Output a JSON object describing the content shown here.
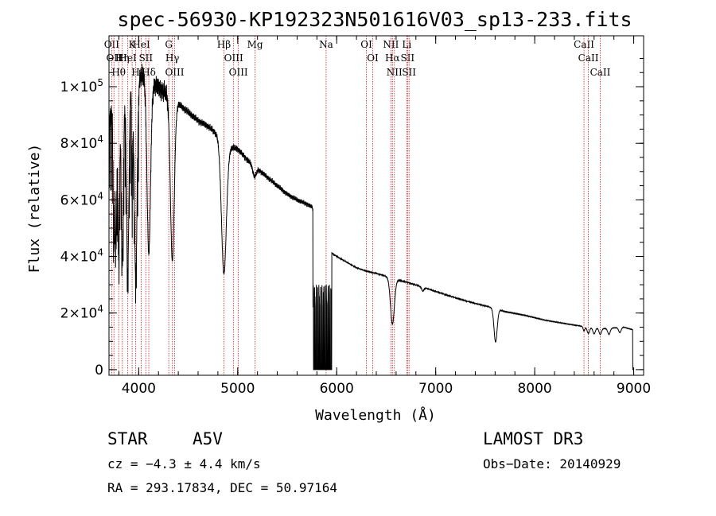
{
  "chart_data": {
    "type": "line",
    "title": "spec-56930-KP192323N501616V03_sp13-233.fits",
    "xlabel": "Wavelength (Å)",
    "ylabel": "Flux (relative)",
    "xlim": [
      3700,
      9100
    ],
    "ylim": [
      -2000,
      118000
    ],
    "x_ticks": [
      4000,
      5000,
      6000,
      7000,
      8000,
      9000
    ],
    "y_ticks": [
      {
        "value": 0,
        "mantissa": "0",
        "exp": ""
      },
      {
        "value": 20000,
        "mantissa": "2×10",
        "exp": "4"
      },
      {
        "value": 40000,
        "mantissa": "4×10",
        "exp": "4"
      },
      {
        "value": 60000,
        "mantissa": "6×10",
        "exp": "4"
      },
      {
        "value": 80000,
        "mantissa": "8×10",
        "exp": "4"
      },
      {
        "value": 100000,
        "mantissa": "1×10",
        "exp": "5"
      }
    ],
    "spectral_lines": [
      {
        "wl": 3727,
        "label": "OII"
      },
      {
        "wl": 3750,
        "label": "OII"
      },
      {
        "wl": 3798,
        "label": "Hθ"
      },
      {
        "wl": 3835,
        "label": "Hη"
      },
      {
        "wl": 3889,
        "label": "HeI"
      },
      {
        "wl": 3934,
        "label": "K"
      },
      {
        "wl": 3969,
        "label": "H"
      },
      {
        "wl": 4026,
        "label": "HeI"
      },
      {
        "wl": 4072,
        "label": "SII"
      },
      {
        "wl": 4102,
        "label": "Hδ"
      },
      {
        "wl": 4304,
        "label": "G"
      },
      {
        "wl": 4340,
        "label": "Hγ"
      },
      {
        "wl": 4363,
        "label": "OIII"
      },
      {
        "wl": 4861,
        "label": "Hβ"
      },
      {
        "wl": 4959,
        "label": "OIII"
      },
      {
        "wl": 5007,
        "label": "OIII"
      },
      {
        "wl": 5175,
        "label": "Mg"
      },
      {
        "wl": 5893,
        "label": "Na"
      },
      {
        "wl": 6300,
        "label": "OI"
      },
      {
        "wl": 6364,
        "label": "OI"
      },
      {
        "wl": 6548,
        "label": "NII"
      },
      {
        "wl": 6563,
        "label": "Hα"
      },
      {
        "wl": 6583,
        "label": "NII"
      },
      {
        "wl": 6708,
        "label": "Li"
      },
      {
        "wl": 6716,
        "label": "SII"
      },
      {
        "wl": 6731,
        "label": "SII"
      },
      {
        "wl": 8498,
        "label": "CaII"
      },
      {
        "wl": 8542,
        "label": "CaII"
      },
      {
        "wl": 8662,
        "label": "CaII"
      }
    ],
    "continuum": [
      [
        3700,
        88000
      ],
      [
        3780,
        96000
      ],
      [
        3850,
        100000
      ],
      [
        3950,
        103000
      ],
      [
        4050,
        104000
      ],
      [
        4150,
        101000
      ],
      [
        4300,
        97000
      ],
      [
        4400,
        94000
      ],
      [
        4500,
        91000
      ],
      [
        4600,
        88000
      ],
      [
        4700,
        86000
      ],
      [
        4800,
        83000
      ],
      [
        4900,
        79000
      ],
      [
        5000,
        78000
      ],
      [
        5100,
        74000
      ],
      [
        5200,
        71000
      ],
      [
        5300,
        68000
      ],
      [
        5400,
        65000
      ],
      [
        5500,
        62000
      ],
      [
        5600,
        60000
      ],
      [
        5700,
        58500
      ],
      [
        5750,
        57500
      ],
      [
        5920,
        42000
      ],
      [
        6000,
        40000
      ],
      [
        6100,
        38000
      ],
      [
        6200,
        36000
      ],
      [
        6300,
        34800
      ],
      [
        6400,
        34000
      ],
      [
        6500,
        33000
      ],
      [
        6560,
        32200
      ],
      [
        6700,
        31000
      ],
      [
        6900,
        28800
      ],
      [
        7100,
        26500
      ],
      [
        7300,
        24300
      ],
      [
        7500,
        22500
      ],
      [
        7590,
        21800
      ],
      [
        7700,
        20500
      ],
      [
        7900,
        19200
      ],
      [
        8100,
        17500
      ],
      [
        8300,
        16300
      ],
      [
        8500,
        15200
      ],
      [
        8700,
        14500
      ],
      [
        8900,
        15000
      ],
      [
        9000,
        14000
      ]
    ],
    "absorptions": [
      {
        "wl": 3750,
        "depth": 0.55,
        "width": 8
      },
      {
        "wl": 3771,
        "depth": 0.55,
        "width": 8
      },
      {
        "wl": 3798,
        "depth": 0.6,
        "width": 10
      },
      {
        "wl": 3835,
        "depth": 0.62,
        "width": 12
      },
      {
        "wl": 3889,
        "depth": 0.66,
        "width": 14
      },
      {
        "wl": 3934,
        "depth": 0.35,
        "width": 6
      },
      {
        "wl": 3970,
        "depth": 0.68,
        "width": 16
      },
      {
        "wl": 4102,
        "depth": 0.6,
        "width": 20
      },
      {
        "wl": 4340,
        "depth": 0.6,
        "width": 22
      },
      {
        "wl": 4861,
        "depth": 0.58,
        "width": 28
      },
      {
        "wl": 5170,
        "depth": 0.05,
        "width": 20
      },
      {
        "wl": 6563,
        "depth": 0.5,
        "width": 22
      },
      {
        "wl": 6870,
        "depth": 0.05,
        "width": 12
      },
      {
        "wl": 7605,
        "depth": 0.55,
        "width": 18
      },
      {
        "wl": 8498,
        "depth": 0.1,
        "width": 10
      },
      {
        "wl": 8542,
        "depth": 0.15,
        "width": 14
      },
      {
        "wl": 8600,
        "depth": 0.15,
        "width": 14
      },
      {
        "wl": 8662,
        "depth": 0.15,
        "width": 14
      },
      {
        "wl": 8750,
        "depth": 0.15,
        "width": 14
      },
      {
        "wl": 8860,
        "depth": 0.12,
        "width": 14
      }
    ],
    "gap": {
      "from": 5760,
      "to": 5950,
      "note": "dropout to zero between CCD channels"
    }
  },
  "info": {
    "object_class": "STAR",
    "subclass": "A5V",
    "survey": "LAMOST DR3",
    "cz": "cz = −4.3 ± 4.4 km/s",
    "obs_date": "Obs−Date: 20140929",
    "coords": "RA = 293.17834, DEC =  50.97164"
  }
}
